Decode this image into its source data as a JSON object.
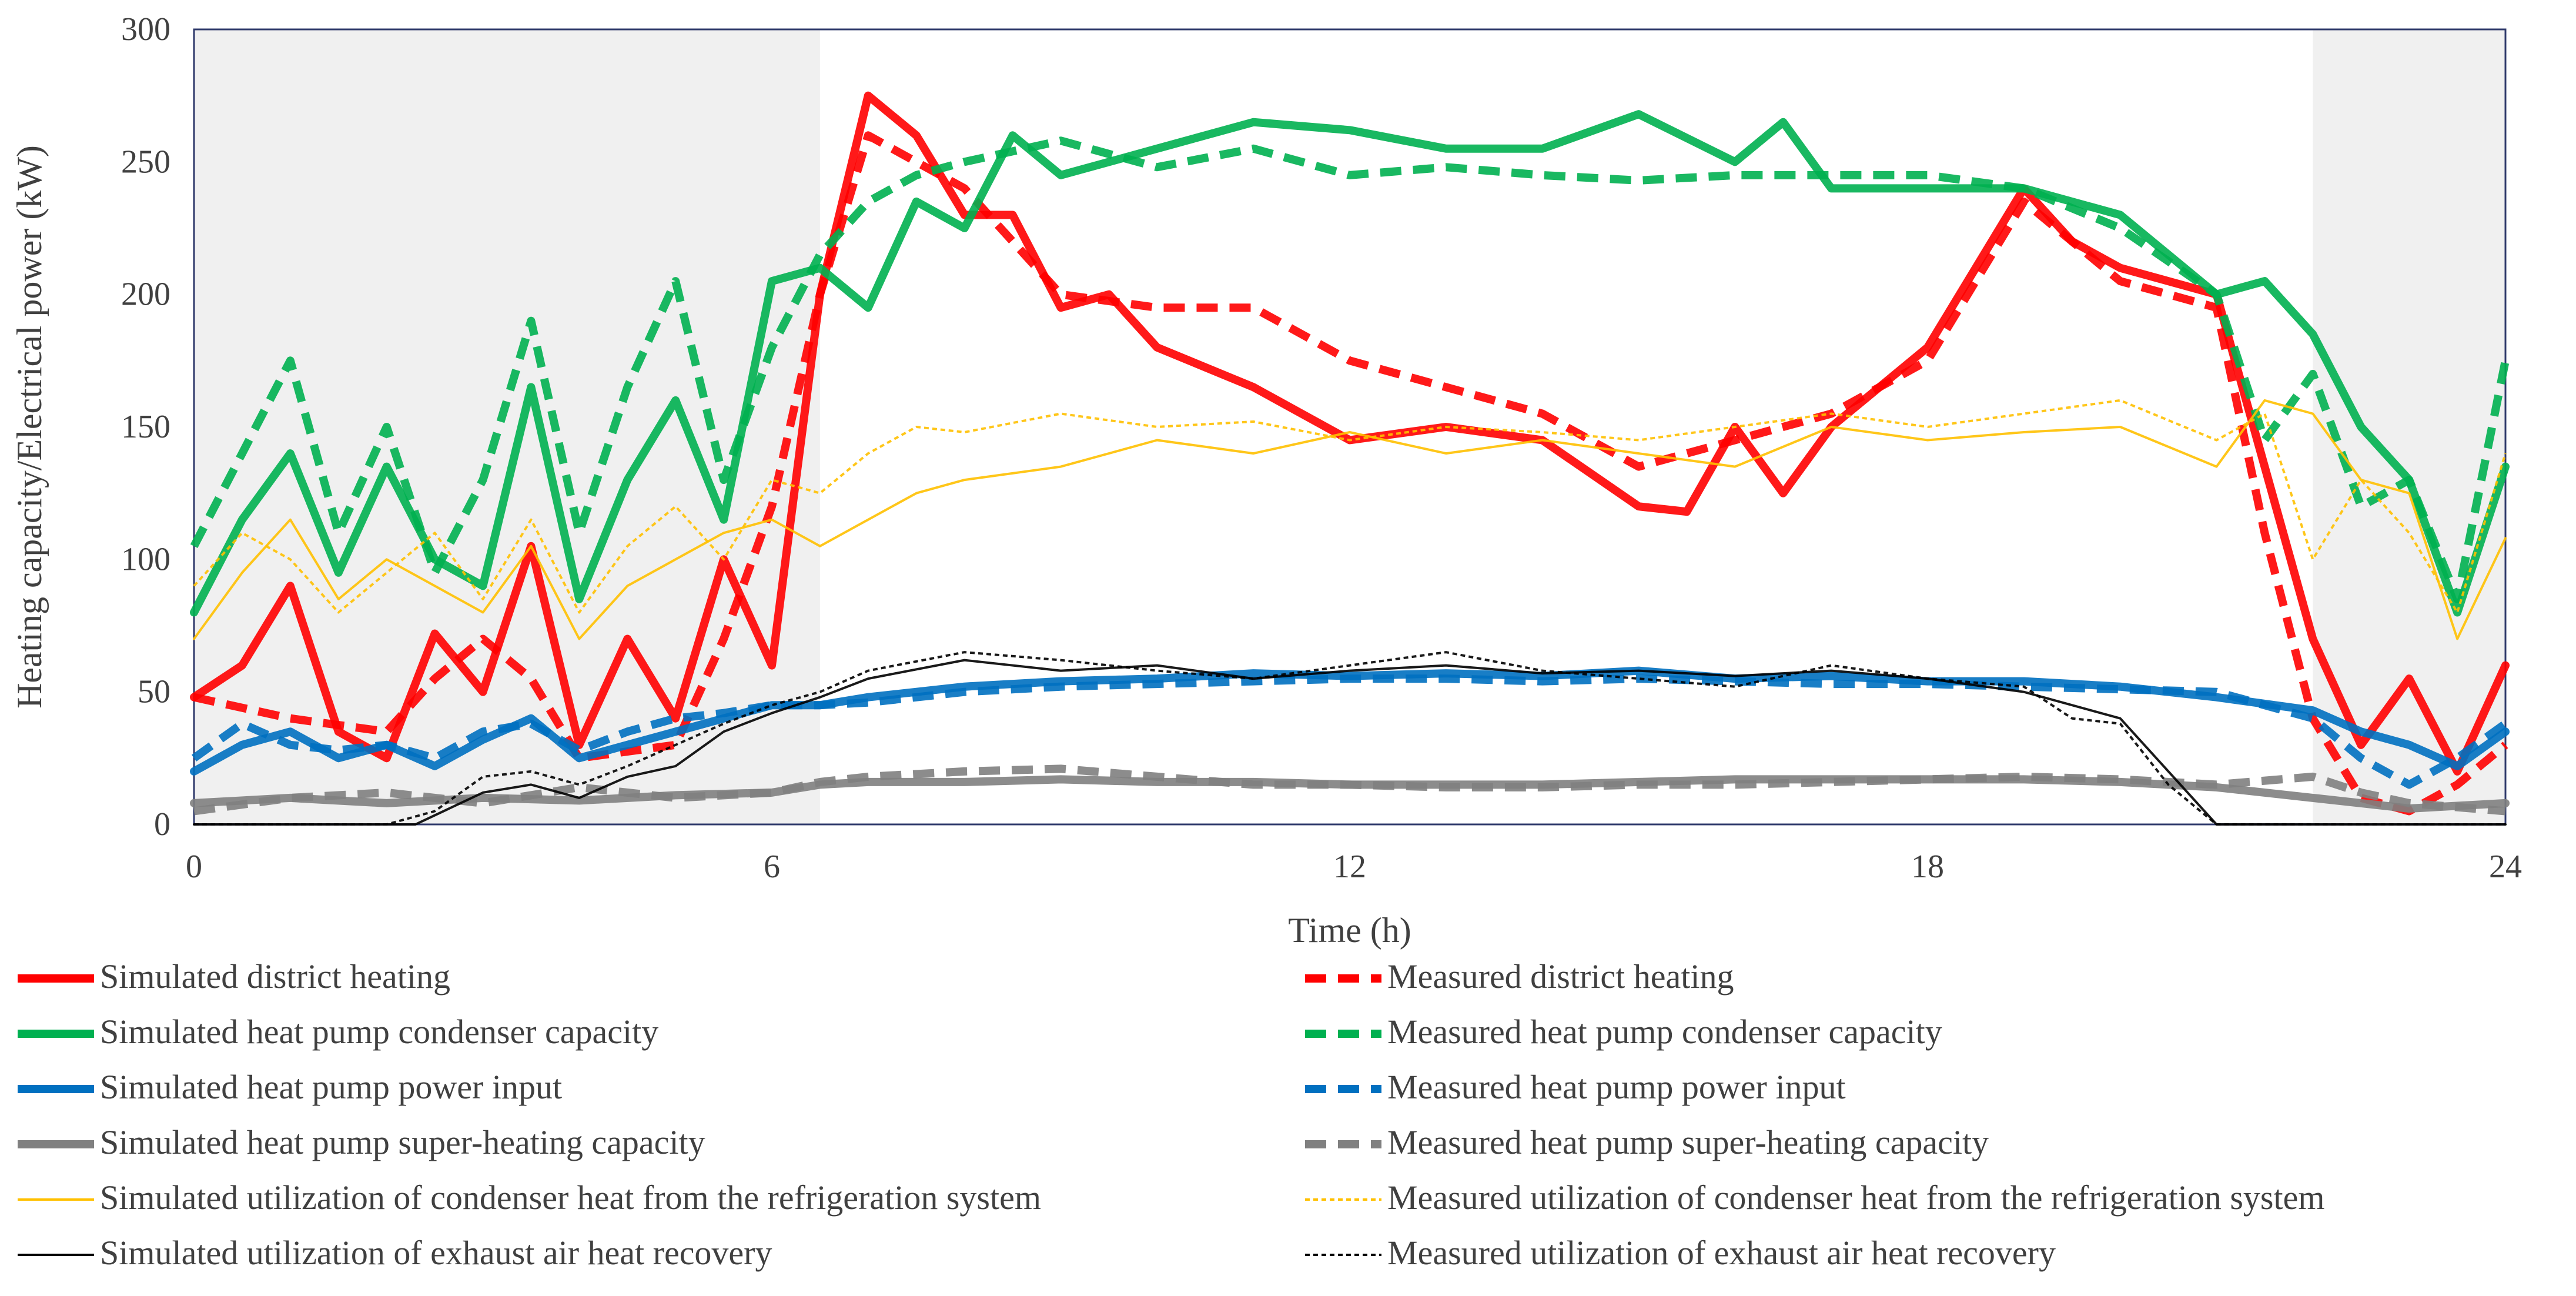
{
  "chart_data": {
    "type": "line",
    "title": "",
    "xlabel": "Time (h)",
    "ylabel": "Heating capacity/Electrical power (kW)",
    "xlim": [
      0,
      24
    ],
    "ylim": [
      0,
      300
    ],
    "xticks": [
      0,
      6,
      12,
      18,
      24
    ],
    "yticks": [
      0,
      50,
      100,
      150,
      200,
      250,
      300
    ],
    "grid": false,
    "legend_position": "bottom",
    "shaded_periods": [
      [
        0,
        6.5
      ],
      [
        22,
        24
      ]
    ],
    "series": [
      {
        "name": "Simulated district heating",
        "color": "#ff0000",
        "style": "solid",
        "width": 14,
        "x": [
          0,
          0.5,
          1,
          1.5,
          2,
          2.5,
          3,
          3.5,
          4,
          4.5,
          5,
          5.5,
          6,
          6.5,
          7,
          7.5,
          8,
          8.5,
          9,
          9.5,
          10,
          11,
          12,
          13,
          14,
          15,
          15.5,
          16,
          16.5,
          17,
          18,
          19,
          19.5,
          20,
          21,
          22,
          22.5,
          23,
          23.5,
          24
        ],
        "y": [
          48,
          60,
          90,
          35,
          25,
          72,
          50,
          105,
          30,
          70,
          40,
          100,
          60,
          200,
          275,
          260,
          230,
          230,
          195,
          200,
          180,
          165,
          145,
          150,
          145,
          120,
          118,
          150,
          125,
          150,
          180,
          240,
          220,
          210,
          200,
          70,
          30,
          55,
          20,
          60
        ]
      },
      {
        "name": "Measured district heating",
        "color": "#ff0000",
        "style": "dashed",
        "width": 14,
        "x": [
          0,
          1,
          2,
          2.5,
          3,
          3.5,
          4,
          5,
          5.5,
          6,
          6.5,
          7,
          8,
          9,
          10,
          11,
          12,
          13,
          14,
          15,
          16,
          17,
          18,
          19,
          20,
          21,
          21.5,
          22,
          22.5,
          23,
          23.5,
          24
        ],
        "y": [
          48,
          40,
          35,
          55,
          70,
          55,
          25,
          30,
          70,
          120,
          200,
          260,
          240,
          200,
          195,
          195,
          175,
          165,
          155,
          135,
          145,
          155,
          175,
          235,
          205,
          195,
          110,
          40,
          10,
          5,
          15,
          30
        ]
      },
      {
        "name": "Simulated heat pump condenser capacity",
        "color": "#00b050",
        "style": "solid",
        "width": 14,
        "x": [
          0,
          0.5,
          1,
          1.5,
          2,
          2.5,
          3,
          3.5,
          4,
          4.5,
          5,
          5.5,
          6,
          6.5,
          7,
          7.5,
          8,
          8.5,
          9,
          10,
          11,
          12,
          13,
          14,
          15,
          16,
          16.5,
          17,
          18,
          19,
          20,
          21,
          21.5,
          22,
          22.5,
          23,
          23.5,
          24
        ],
        "y": [
          80,
          115,
          140,
          95,
          135,
          100,
          90,
          165,
          85,
          130,
          160,
          115,
          205,
          210,
          195,
          235,
          225,
          260,
          245,
          255,
          265,
          262,
          255,
          255,
          268,
          250,
          265,
          240,
          240,
          240,
          230,
          200,
          205,
          185,
          150,
          130,
          80,
          135
        ]
      },
      {
        "name": "Measured heat pump condenser capacity",
        "color": "#00b050",
        "style": "dashed",
        "width": 14,
        "x": [
          0,
          0.5,
          1,
          1.5,
          2,
          2.5,
          3,
          3.5,
          4,
          4.5,
          5,
          5.5,
          6,
          6.5,
          7,
          7.5,
          8,
          9,
          10,
          11,
          12,
          13,
          14,
          15,
          16,
          17,
          18,
          19,
          20,
          21,
          21.5,
          22,
          22.5,
          23,
          23.5,
          24
        ],
        "y": [
          105,
          140,
          175,
          110,
          150,
          95,
          130,
          190,
          110,
          165,
          205,
          130,
          180,
          215,
          235,
          245,
          250,
          258,
          248,
          255,
          245,
          248,
          245,
          243,
          245,
          245,
          245,
          240,
          225,
          200,
          145,
          170,
          120,
          130,
          85,
          175
        ]
      },
      {
        "name": "Simulated heat pump power input",
        "color": "#0070c0",
        "style": "solid",
        "width": 14,
        "x": [
          0,
          0.5,
          1,
          1.5,
          2,
          2.5,
          3,
          3.5,
          4,
          4.5,
          5,
          5.5,
          6,
          6.5,
          7,
          8,
          9,
          10,
          11,
          12,
          13,
          14,
          15,
          16,
          17,
          18,
          19,
          20,
          21,
          22,
          22.5,
          23,
          23.5,
          24
        ],
        "y": [
          20,
          30,
          35,
          25,
          30,
          22,
          32,
          40,
          25,
          30,
          35,
          40,
          45,
          45,
          48,
          52,
          54,
          55,
          57,
          56,
          57,
          56,
          58,
          55,
          56,
          54,
          54,
          52,
          48,
          43,
          35,
          30,
          22,
          35
        ]
      },
      {
        "name": "Measured heat pump power input",
        "color": "#0070c0",
        "style": "dashed",
        "width": 14,
        "x": [
          0,
          0.5,
          1,
          1.5,
          2,
          2.5,
          3,
          3.5,
          4,
          4.5,
          5,
          5.5,
          6,
          6.5,
          7,
          8,
          9,
          10,
          11,
          12,
          13,
          14,
          15,
          16,
          17,
          18,
          19,
          20,
          21,
          21.5,
          22,
          22.5,
          23,
          23.5,
          24
        ],
        "y": [
          25,
          38,
          30,
          28,
          30,
          25,
          35,
          38,
          28,
          35,
          40,
          42,
          45,
          45,
          46,
          50,
          52,
          53,
          54,
          55,
          55,
          54,
          55,
          54,
          53,
          53,
          52,
          51,
          50,
          45,
          40,
          25,
          15,
          25,
          38
        ]
      },
      {
        "name": "Simulated heat pump super-heating capacity",
        "color": "#808080",
        "style": "solid",
        "width": 14,
        "x": [
          0,
          1,
          2,
          3,
          4,
          5,
          6,
          6.5,
          7,
          8,
          9,
          10,
          11,
          12,
          13,
          14,
          15,
          16,
          17,
          18,
          19,
          20,
          21,
          22,
          22.5,
          23,
          24
        ],
        "y": [
          8,
          10,
          8,
          10,
          9,
          11,
          12,
          15,
          16,
          16,
          17,
          16,
          16,
          15,
          15,
          15,
          16,
          17,
          17,
          17,
          17,
          16,
          14,
          10,
          8,
          6,
          8
        ]
      },
      {
        "name": "Measured heat pump super-heating capacity",
        "color": "#808080",
        "style": "dashed",
        "width": 14,
        "x": [
          0,
          1,
          2,
          3,
          4,
          5,
          6,
          6.5,
          7,
          8,
          9,
          10,
          11,
          12,
          13,
          14,
          15,
          16,
          17,
          18,
          19,
          20,
          21,
          22,
          22.5,
          23,
          24
        ],
        "y": [
          5,
          10,
          12,
          8,
          14,
          10,
          12,
          16,
          18,
          20,
          21,
          18,
          15,
          15,
          14,
          14,
          15,
          15,
          16,
          17,
          18,
          17,
          15,
          18,
          12,
          8,
          5
        ]
      },
      {
        "name": "Simulated utilization of condenser heat from the refrigeration system",
        "color": "#ffc000",
        "style": "solid",
        "width": 4,
        "x": [
          0,
          0.5,
          1,
          1.5,
          2,
          2.5,
          3,
          3.5,
          4,
          4.5,
          5,
          5.5,
          6,
          6.5,
          7,
          7.5,
          8,
          9,
          10,
          11,
          12,
          13,
          14,
          15,
          16,
          17,
          18,
          19,
          20,
          21,
          21.5,
          22,
          22.5,
          23,
          23.5,
          24
        ],
        "y": [
          70,
          95,
          115,
          85,
          100,
          90,
          80,
          105,
          70,
          90,
          100,
          110,
          115,
          105,
          115,
          125,
          130,
          135,
          145,
          140,
          148,
          140,
          145,
          140,
          135,
          150,
          145,
          148,
          150,
          135,
          160,
          155,
          130,
          125,
          70,
          108
        ]
      },
      {
        "name": "Measured utilization of condenser heat from the refrigeration system",
        "color": "#ffc000",
        "style": "dotted",
        "width": 4,
        "x": [
          0,
          0.5,
          1,
          1.5,
          2,
          2.5,
          3,
          3.5,
          4,
          4.5,
          5,
          5.5,
          6,
          6.5,
          7,
          7.5,
          8,
          9,
          10,
          11,
          12,
          13,
          14,
          15,
          16,
          17,
          18,
          19,
          20,
          21,
          21.5,
          22,
          22.5,
          23,
          23.5,
          24
        ],
        "y": [
          90,
          110,
          100,
          80,
          95,
          110,
          85,
          115,
          80,
          105,
          120,
          100,
          130,
          125,
          140,
          150,
          148,
          155,
          150,
          152,
          145,
          150,
          148,
          145,
          150,
          155,
          150,
          155,
          160,
          145,
          155,
          100,
          130,
          110,
          80,
          140
        ]
      },
      {
        "name": "Simulated utilization of exhaust air heat recovery",
        "color": "#000000",
        "style": "solid",
        "width": 4,
        "x": [
          0,
          1,
          2,
          2.3,
          3,
          3.5,
          4,
          4.5,
          5,
          5.5,
          6,
          6.5,
          7,
          8,
          9,
          10,
          11,
          12,
          13,
          14,
          15,
          16,
          17,
          18,
          19,
          20,
          20.5,
          21,
          22,
          23,
          24
        ],
        "y": [
          0,
          0,
          0,
          0,
          12,
          15,
          10,
          18,
          22,
          35,
          42,
          48,
          55,
          62,
          58,
          60,
          55,
          58,
          60,
          57,
          58,
          56,
          58,
          55,
          50,
          40,
          20,
          0,
          0,
          0,
          0
        ]
      },
      {
        "name": "Measured utilization of exhaust air heat recovery",
        "color": "#000000",
        "style": "dotted",
        "width": 4,
        "x": [
          0,
          1,
          2,
          2.5,
          3,
          3.5,
          4,
          4.5,
          5,
          5.5,
          6,
          6.5,
          7,
          8,
          9,
          10,
          11,
          12,
          13,
          14,
          15,
          16,
          17,
          18,
          19,
          19.5,
          20,
          20.5,
          21,
          22,
          23,
          24
        ],
        "y": [
          0,
          0,
          0,
          5,
          18,
          20,
          15,
          22,
          30,
          38,
          45,
          50,
          58,
          65,
          62,
          58,
          55,
          60,
          65,
          58,
          55,
          52,
          60,
          55,
          52,
          40,
          38,
          15,
          0,
          0,
          0,
          0
        ]
      }
    ]
  }
}
